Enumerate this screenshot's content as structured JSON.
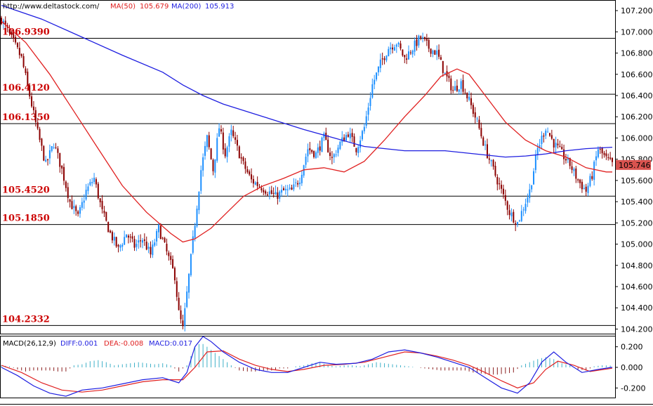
{
  "header": {
    "url": "http://www.deltastock.com/",
    "ma50_label": "MA(50)",
    "ma50_value": "105.679",
    "ma200_label": "MA(200)",
    "ma200_value": "105.913"
  },
  "colors": {
    "up": "#1e90ff",
    "down": "#8b0000",
    "ma50": "#e02020",
    "ma200": "#1e1ee0",
    "level_text": "#cc0000",
    "price_box": "#d9534f",
    "macd_pos": "#3fb0c8",
    "macd_neg": "#8b2020"
  },
  "chart_data": [
    {
      "type": "candlestick",
      "ylim": [
        104.15,
        107.3
      ],
      "yticks": [
        {
          "v": 107.2,
          "label": "107.200"
        },
        {
          "v": 107.0,
          "label": "107.000"
        },
        {
          "v": 106.8,
          "label": "106.800"
        },
        {
          "v": 106.6,
          "label": "106.600"
        },
        {
          "v": 106.4,
          "label": "106.400"
        },
        {
          "v": 106.2,
          "label": "106.200"
        },
        {
          "v": 106.0,
          "label": "106.000"
        },
        {
          "v": 105.8,
          "label": "105.800"
        },
        {
          "v": 105.6,
          "label": "105.600"
        },
        {
          "v": 105.4,
          "label": "105.400"
        },
        {
          "v": 105.2,
          "label": "105.200"
        },
        {
          "v": 105.0,
          "label": "105.000"
        },
        {
          "v": 104.8,
          "label": "104.800"
        },
        {
          "v": 104.6,
          "label": "104.600"
        },
        {
          "v": 104.4,
          "label": "104.400"
        },
        {
          "v": 104.2,
          "label": "104.200"
        }
      ],
      "levels": [
        {
          "v": 106.939,
          "label": "106.9390"
        },
        {
          "v": 106.412,
          "label": "106.4120"
        },
        {
          "v": 106.135,
          "label": "106.1350"
        },
        {
          "v": 105.452,
          "label": "105.4520"
        },
        {
          "v": 105.185,
          "label": "105.1850"
        },
        {
          "v": 104.2332,
          "label": "104.2332"
        }
      ],
      "last_price": {
        "v": 105.746,
        "label": "105.746"
      },
      "price_path": [
        [
          0,
          107.12
        ],
        [
          6,
          106.9
        ],
        [
          10,
          106.75
        ],
        [
          14,
          106.4
        ],
        [
          18,
          106.05
        ],
        [
          22,
          105.75
        ],
        [
          26,
          105.95
        ],
        [
          30,
          105.7
        ],
        [
          34,
          105.4
        ],
        [
          38,
          105.25
        ],
        [
          42,
          105.5
        ],
        [
          46,
          105.62
        ],
        [
          50,
          105.3
        ],
        [
          54,
          105.1
        ],
        [
          58,
          104.95
        ],
        [
          62,
          105.1
        ],
        [
          66,
          104.98
        ],
        [
          70,
          105.05
        ],
        [
          74,
          104.9
        ],
        [
          78,
          105.15
        ],
        [
          82,
          104.92
        ],
        [
          86,
          104.7
        ],
        [
          88,
          104.35
        ],
        [
          90,
          104.2
        ],
        [
          93,
          104.7
        ],
        [
          96,
          105.2
        ],
        [
          99,
          105.7
        ],
        [
          102,
          106.0
        ],
        [
          105,
          105.7
        ],
        [
          108,
          106.1
        ],
        [
          111,
          105.85
        ],
        [
          114,
          106.05
        ],
        [
          117,
          105.9
        ],
        [
          120,
          105.75
        ],
        [
          124,
          105.6
        ],
        [
          128,
          105.55
        ],
        [
          132,
          105.5
        ],
        [
          136,
          105.45
        ],
        [
          140,
          105.5
        ],
        [
          144,
          105.5
        ],
        [
          148,
          105.62
        ],
        [
          152,
          105.9
        ],
        [
          156,
          105.85
        ],
        [
          160,
          106.0
        ],
        [
          164,
          105.8
        ],
        [
          168,
          105.95
        ],
        [
          172,
          106.05
        ],
        [
          176,
          105.9
        ],
        [
          180,
          106.1
        ],
        [
          184,
          106.5
        ],
        [
          188,
          106.7
        ],
        [
          192,
          106.85
        ],
        [
          196,
          106.9
        ],
        [
          200,
          106.75
        ],
        [
          204,
          106.85
        ],
        [
          208,
          106.95
        ],
        [
          212,
          106.85
        ],
        [
          216,
          106.8
        ],
        [
          220,
          106.6
        ],
        [
          224,
          106.45
        ],
        [
          228,
          106.52
        ],
        [
          232,
          106.35
        ],
        [
          236,
          106.15
        ],
        [
          240,
          105.9
        ],
        [
          244,
          105.7
        ],
        [
          248,
          105.5
        ],
        [
          252,
          105.3
        ],
        [
          256,
          105.2
        ],
        [
          259,
          105.35
        ],
        [
          262,
          105.5
        ],
        [
          266,
          105.9
        ],
        [
          270,
          106.1
        ],
        [
          274,
          105.95
        ],
        [
          278,
          105.85
        ],
        [
          282,
          105.75
        ],
        [
          286,
          105.6
        ],
        [
          290,
          105.5
        ],
        [
          293,
          105.65
        ],
        [
          296,
          105.9
        ],
        [
          300,
          105.8
        ],
        [
          303,
          105.75
        ]
      ],
      "ma50": [
        [
          0,
          107.1
        ],
        [
          12,
          106.9
        ],
        [
          24,
          106.6
        ],
        [
          36,
          106.25
        ],
        [
          48,
          105.9
        ],
        [
          60,
          105.55
        ],
        [
          72,
          105.3
        ],
        [
          84,
          105.1
        ],
        [
          90,
          105.02
        ],
        [
          96,
          105.05
        ],
        [
          104,
          105.15
        ],
        [
          112,
          105.3
        ],
        [
          120,
          105.45
        ],
        [
          130,
          105.55
        ],
        [
          140,
          105.62
        ],
        [
          150,
          105.7
        ],
        [
          160,
          105.72
        ],
        [
          170,
          105.68
        ],
        [
          180,
          105.78
        ],
        [
          190,
          105.98
        ],
        [
          200,
          106.2
        ],
        [
          210,
          106.4
        ],
        [
          218,
          106.58
        ],
        [
          226,
          106.65
        ],
        [
          232,
          106.6
        ],
        [
          240,
          106.4
        ],
        [
          250,
          106.15
        ],
        [
          260,
          105.98
        ],
        [
          270,
          105.88
        ],
        [
          280,
          105.82
        ],
        [
          290,
          105.72
        ],
        [
          300,
          105.68
        ],
        [
          303,
          105.68
        ]
      ],
      "ma200": [
        [
          0,
          107.25
        ],
        [
          20,
          107.12
        ],
        [
          40,
          106.95
        ],
        [
          60,
          106.78
        ],
        [
          80,
          106.62
        ],
        [
          90,
          106.5
        ],
        [
          100,
          106.4
        ],
        [
          110,
          106.32
        ],
        [
          130,
          106.2
        ],
        [
          150,
          106.08
        ],
        [
          165,
          106.0
        ],
        [
          180,
          105.92
        ],
        [
          200,
          105.88
        ],
        [
          220,
          105.88
        ],
        [
          240,
          105.84
        ],
        [
          250,
          105.82
        ],
        [
          260,
          105.83
        ],
        [
          270,
          105.85
        ],
        [
          280,
          105.88
        ],
        [
          290,
          105.9
        ],
        [
          303,
          105.913
        ]
      ]
    },
    {
      "type": "macd",
      "title": "MACD(26,12,9)",
      "diff_label": "DIFF:0.001",
      "dea_label": "DEA:-0.008",
      "macd_label": "MACD:0.017",
      "ylim": [
        -0.3,
        0.3
      ],
      "yticks": [
        {
          "v": 0.2,
          "label": "0.200"
        },
        {
          "v": 0.0,
          "label": "0.000"
        },
        {
          "v": -0.2,
          "label": "-0.200"
        }
      ],
      "diff": [
        [
          0,
          0.0
        ],
        [
          8,
          -0.08
        ],
        [
          16,
          -0.18
        ],
        [
          24,
          -0.25
        ],
        [
          32,
          -0.28
        ],
        [
          40,
          -0.22
        ],
        [
          50,
          -0.2
        ],
        [
          60,
          -0.16
        ],
        [
          70,
          -0.12
        ],
        [
          80,
          -0.1
        ],
        [
          88,
          -0.15
        ],
        [
          92,
          -0.05
        ],
        [
          96,
          0.2
        ],
        [
          100,
          0.3
        ],
        [
          104,
          0.25
        ],
        [
          110,
          0.15
        ],
        [
          118,
          0.05
        ],
        [
          126,
          -0.02
        ],
        [
          134,
          -0.05
        ],
        [
          142,
          -0.05
        ],
        [
          150,
          0.0
        ],
        [
          158,
          0.05
        ],
        [
          166,
          0.03
        ],
        [
          176,
          0.04
        ],
        [
          184,
          0.08
        ],
        [
          192,
          0.15
        ],
        [
          200,
          0.17
        ],
        [
          208,
          0.14
        ],
        [
          216,
          0.1
        ],
        [
          224,
          0.05
        ],
        [
          232,
          0.0
        ],
        [
          240,
          -0.1
        ],
        [
          248,
          -0.2
        ],
        [
          256,
          -0.25
        ],
        [
          262,
          -0.15
        ],
        [
          268,
          0.05
        ],
        [
          274,
          0.15
        ],
        [
          280,
          0.05
        ],
        [
          288,
          -0.05
        ],
        [
          296,
          -0.02
        ],
        [
          303,
          0.001
        ]
      ],
      "dea": [
        [
          0,
          0.02
        ],
        [
          10,
          -0.05
        ],
        [
          20,
          -0.15
        ],
        [
          30,
          -0.22
        ],
        [
          40,
          -0.24
        ],
        [
          50,
          -0.22
        ],
        [
          60,
          -0.18
        ],
        [
          70,
          -0.14
        ],
        [
          80,
          -0.12
        ],
        [
          90,
          -0.12
        ],
        [
          96,
          0.0
        ],
        [
          102,
          0.15
        ],
        [
          110,
          0.16
        ],
        [
          118,
          0.08
        ],
        [
          126,
          0.02
        ],
        [
          134,
          -0.02
        ],
        [
          142,
          -0.04
        ],
        [
          150,
          -0.02
        ],
        [
          160,
          0.02
        ],
        [
          170,
          0.03
        ],
        [
          180,
          0.05
        ],
        [
          190,
          0.1
        ],
        [
          200,
          0.15
        ],
        [
          208,
          0.14
        ],
        [
          216,
          0.11
        ],
        [
          224,
          0.07
        ],
        [
          232,
          0.02
        ],
        [
          240,
          -0.05
        ],
        [
          248,
          -0.13
        ],
        [
          256,
          -0.2
        ],
        [
          264,
          -0.15
        ],
        [
          270,
          -0.02
        ],
        [
          276,
          0.06
        ],
        [
          284,
          0.02
        ],
        [
          292,
          -0.04
        ],
        [
          303,
          -0.008
        ]
      ],
      "hist": [
        [
          0,
          0.02
        ],
        [
          4,
          0.01
        ],
        [
          8,
          -0.02
        ],
        [
          12,
          -0.04
        ],
        [
          16,
          -0.03
        ],
        [
          20,
          -0.03
        ],
        [
          24,
          -0.03
        ],
        [
          28,
          -0.04
        ],
        [
          32,
          -0.04
        ],
        [
          36,
          0.02
        ],
        [
          40,
          0.03
        ],
        [
          44,
          0.06
        ],
        [
          48,
          0.07
        ],
        [
          52,
          0.05
        ],
        [
          56,
          0.02
        ],
        [
          60,
          0.03
        ],
        [
          64,
          0.04
        ],
        [
          68,
          0.05
        ],
        [
          72,
          0.04
        ],
        [
          76,
          0.03
        ],
        [
          80,
          0.04
        ],
        [
          84,
          0.02
        ],
        [
          88,
          -0.04
        ],
        [
          92,
          0.02
        ],
        [
          96,
          0.2
        ],
        [
          99,
          0.24
        ],
        [
          102,
          0.2
        ],
        [
          106,
          0.14
        ],
        [
          110,
          0.08
        ],
        [
          114,
          0.02
        ],
        [
          118,
          -0.03
        ],
        [
          122,
          -0.04
        ],
        [
          126,
          -0.04
        ],
        [
          130,
          -0.03
        ],
        [
          134,
          -0.03
        ],
        [
          138,
          -0.01
        ],
        [
          142,
          -0.01
        ],
        [
          146,
          0.01
        ],
        [
          150,
          0.02
        ],
        [
          154,
          0.04
        ],
        [
          158,
          0.05
        ],
        [
          162,
          0.02
        ],
        [
          166,
          0.01
        ],
        [
          170,
          0.02
        ],
        [
          174,
          0.02
        ],
        [
          178,
          0.01
        ],
        [
          182,
          0.03
        ],
        [
          186,
          0.05
        ],
        [
          190,
          0.04
        ],
        [
          194,
          0.03
        ],
        [
          198,
          0.02
        ],
        [
          202,
          0.01
        ],
        [
          206,
          0.0
        ],
        [
          210,
          -0.01
        ],
        [
          214,
          -0.02
        ],
        [
          218,
          -0.03
        ],
        [
          222,
          -0.03
        ],
        [
          226,
          -0.03
        ],
        [
          230,
          -0.03
        ],
        [
          234,
          -0.05
        ],
        [
          238,
          -0.06
        ],
        [
          242,
          -0.07
        ],
        [
          246,
          -0.07
        ],
        [
          250,
          -0.06
        ],
        [
          254,
          -0.05
        ],
        [
          258,
          0.02
        ],
        [
          262,
          0.05
        ],
        [
          266,
          0.08
        ],
        [
          270,
          0.1
        ],
        [
          274,
          0.08
        ],
        [
          278,
          0.04
        ],
        [
          282,
          0.02
        ],
        [
          286,
          -0.02
        ],
        [
          290,
          -0.03
        ],
        [
          294,
          0.01
        ],
        [
          298,
          0.02
        ],
        [
          303,
          0.017
        ]
      ]
    }
  ]
}
